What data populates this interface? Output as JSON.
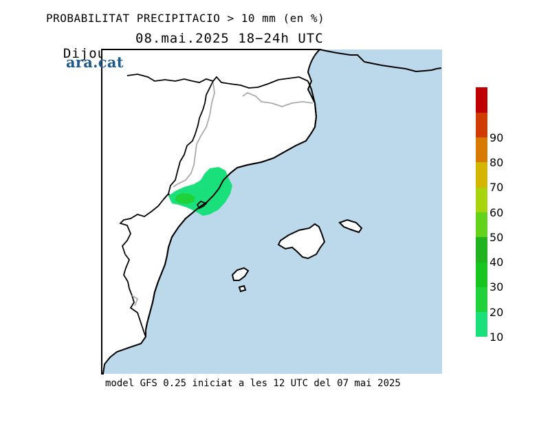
{
  "header": {
    "title": "PROBABILITAT PRECIPITACIO > 10 mm (en %)",
    "day": "Dijous",
    "datetime": "08.mai.2025 18−24h UTC"
  },
  "logo": {
    "text": "ara.cat"
  },
  "footer": {
    "text": "model GFS 0.25 iniciat a les 12 UTC del 07 mai 2025"
  },
  "colors": {
    "sea": "#bcd9ec",
    "land": "#ffffff",
    "coast": "#000000",
    "border": "#aaaaaa",
    "prob_10": "#19e07a",
    "prob_20": "#1fd23a"
  },
  "legend": {
    "levels": [
      {
        "label": "10",
        "color": "#19e07a"
      },
      {
        "label": "20",
        "color": "#1fd23a"
      },
      {
        "label": "30",
        "color": "#18c41e"
      },
      {
        "label": "40",
        "color": "#1fb41f"
      },
      {
        "label": "50",
        "color": "#62d21a"
      },
      {
        "label": "60",
        "color": "#a8d40e"
      },
      {
        "label": "70",
        "color": "#d4b600"
      },
      {
        "label": "80",
        "color": "#d97a00"
      },
      {
        "label": "90",
        "color": "#cf3b00"
      },
      {
        "label": "",
        "color": "#c00000"
      }
    ]
  }
}
